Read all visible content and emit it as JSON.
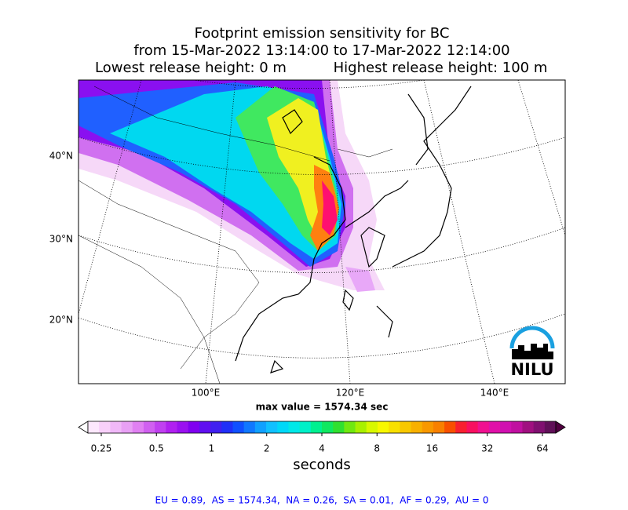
{
  "header": {
    "title": "Footprint emission sensitivity for BC",
    "period": "from 15-Mar-2022 13:14:00 to 17-Mar-2022 12:14:00",
    "lowest_release": "Lowest release height: 0 m",
    "highest_release": "Highest release height: 100 m"
  },
  "map": {
    "lat_labels": [
      "40°N",
      "30°N",
      "20°N"
    ],
    "lon_labels": [
      "100°E",
      "120°E",
      "140°E"
    ],
    "max_value": "max value = 1574.34 sec",
    "logo": "NILU"
  },
  "colorbar": {
    "ticks": [
      0.25,
      0.5,
      1,
      2,
      4,
      8,
      16,
      32,
      64
    ],
    "label": "seconds"
  },
  "footer": "EU = 0.89,  AS = 1574.34,  NA = 0.26,  SA = 0.01,  AF = 0.29,  AU = 0"
}
